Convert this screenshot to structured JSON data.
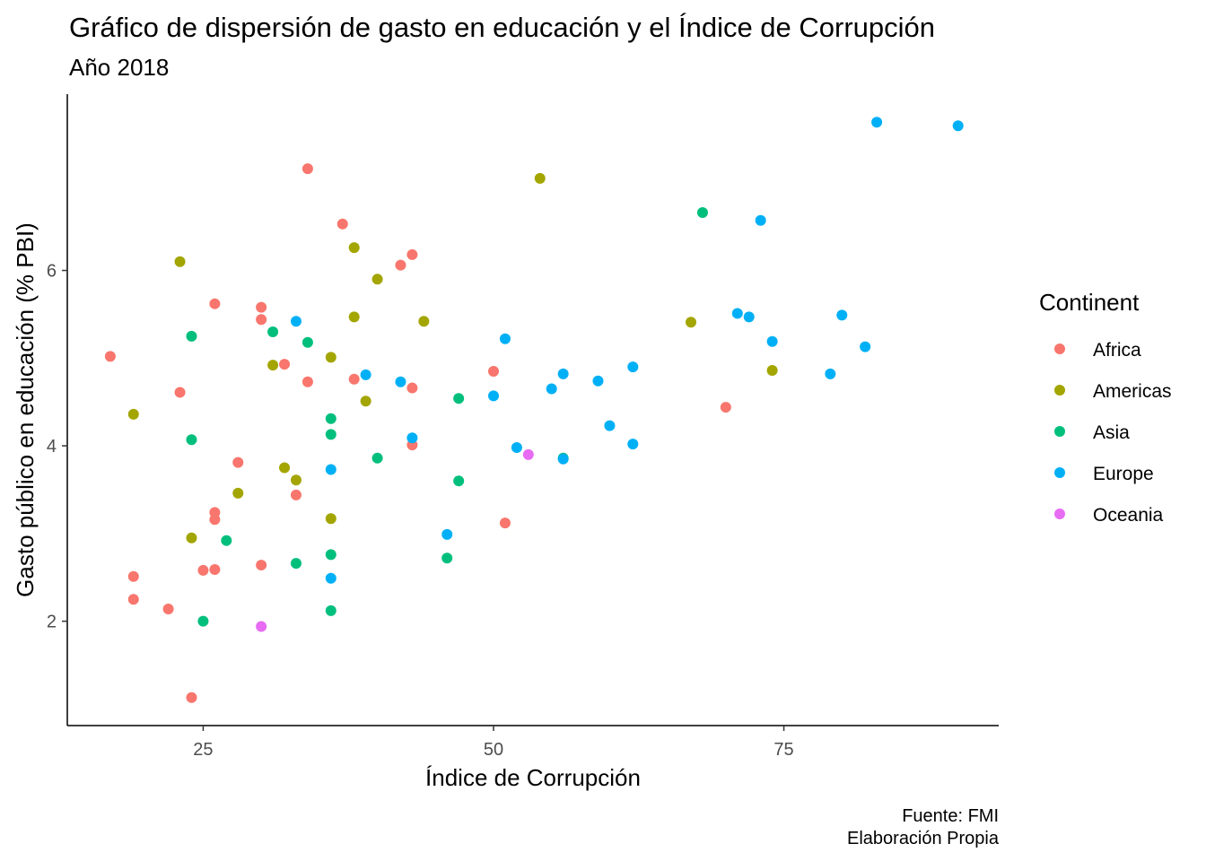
{
  "chart_data": {
    "type": "scatter",
    "title": "Gráfico de dispersión de gasto en educación y el Índice de Corrupción",
    "subtitle": "Año 2018",
    "xlabel": "Índice de Corrupción",
    "ylabel": "Gasto público en educación (% PBI)",
    "caption": [
      "Fuente: FMI",
      "Elaboración Propia"
    ],
    "xlim": [
      13.3,
      93.5
    ],
    "ylim": [
      0.81,
      8.01
    ],
    "x_ticks": [
      25,
      50,
      75
    ],
    "y_ticks": [
      2,
      4,
      6
    ],
    "grid": false,
    "legend": {
      "title": "Continent",
      "placement": "right"
    },
    "series": [
      {
        "name": "Africa",
        "color": "#F8766D",
        "points": [
          [
            17,
            5.02
          ],
          [
            19,
            2.51
          ],
          [
            19,
            2.25
          ],
          [
            22,
            2.14
          ],
          [
            23,
            4.61
          ],
          [
            24,
            1.13
          ],
          [
            25,
            2.58
          ],
          [
            26,
            5.62
          ],
          [
            26,
            3.24
          ],
          [
            26,
            3.16
          ],
          [
            26,
            2.59
          ],
          [
            28,
            3.81
          ],
          [
            30,
            5.58
          ],
          [
            30,
            5.44
          ],
          [
            30,
            2.64
          ],
          [
            32,
            4.93
          ],
          [
            33,
            3.44
          ],
          [
            34,
            7.16
          ],
          [
            34,
            4.73
          ],
          [
            37,
            6.53
          ],
          [
            38,
            4.76
          ],
          [
            42,
            6.06
          ],
          [
            43,
            6.18
          ],
          [
            43,
            4.66
          ],
          [
            43,
            4.01
          ],
          [
            50,
            4.85
          ],
          [
            51,
            3.12
          ],
          [
            70,
            4.44
          ]
        ]
      },
      {
        "name": "Americas",
        "color": "#A3A500",
        "points": [
          [
            19,
            4.36
          ],
          [
            23,
            6.1
          ],
          [
            24,
            2.95
          ],
          [
            28,
            3.46
          ],
          [
            31,
            4.92
          ],
          [
            32,
            3.75
          ],
          [
            33,
            3.61
          ],
          [
            36,
            5.01
          ],
          [
            36,
            3.17
          ],
          [
            38,
            6.26
          ],
          [
            38,
            5.47
          ],
          [
            39,
            4.51
          ],
          [
            40,
            5.9
          ],
          [
            44,
            5.42
          ],
          [
            54,
            7.05
          ],
          [
            67,
            5.41
          ],
          [
            74,
            4.86
          ]
        ]
      },
      {
        "name": "Asia",
        "color": "#00BF7D",
        "points": [
          [
            24,
            5.25
          ],
          [
            24,
            4.07
          ],
          [
            25,
            2.0
          ],
          [
            27,
            2.92
          ],
          [
            31,
            5.3
          ],
          [
            33,
            2.66
          ],
          [
            34,
            5.18
          ],
          [
            36,
            4.31
          ],
          [
            36,
            4.13
          ],
          [
            36,
            2.76
          ],
          [
            36,
            2.12
          ],
          [
            40,
            3.86
          ],
          [
            46,
            2.72
          ],
          [
            47,
            4.54
          ],
          [
            47,
            3.6
          ],
          [
            56,
            3.86
          ],
          [
            68,
            6.66
          ]
        ]
      },
      {
        "name": "Europe",
        "color": "#00B0F6",
        "points": [
          [
            33,
            5.42
          ],
          [
            36,
            3.73
          ],
          [
            36,
            2.49
          ],
          [
            39,
            4.81
          ],
          [
            42,
            4.73
          ],
          [
            43,
            4.09
          ],
          [
            46,
            2.99
          ],
          [
            50,
            4.57
          ],
          [
            51,
            5.22
          ],
          [
            52,
            3.98
          ],
          [
            55,
            4.65
          ],
          [
            56,
            4.82
          ],
          [
            56,
            3.85
          ],
          [
            59,
            4.74
          ],
          [
            60,
            4.23
          ],
          [
            62,
            4.9
          ],
          [
            62,
            4.02
          ],
          [
            71,
            5.51
          ],
          [
            72,
            5.47
          ],
          [
            73,
            6.57
          ],
          [
            74,
            5.19
          ],
          [
            79,
            4.82
          ],
          [
            80,
            5.49
          ],
          [
            82,
            5.13
          ],
          [
            83,
            7.69
          ],
          [
            90,
            7.65
          ]
        ]
      },
      {
        "name": "Oceania",
        "color": "#E76BF3",
        "points": [
          [
            30,
            1.94
          ],
          [
            53,
            3.9
          ]
        ]
      }
    ]
  }
}
